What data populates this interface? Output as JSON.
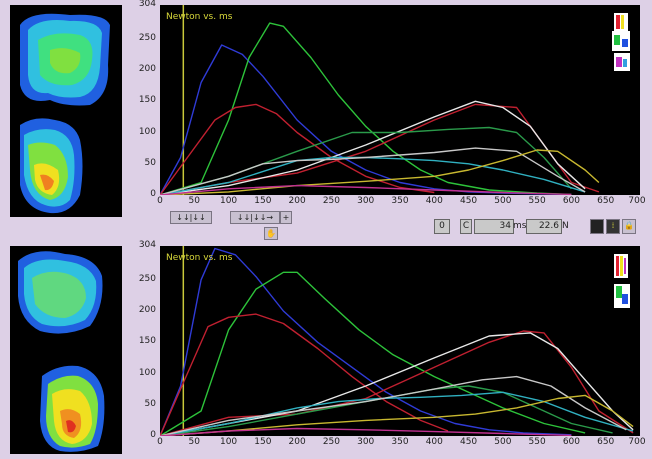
{
  "chart_data": [
    {
      "type": "line",
      "title": "Newton vs. ms",
      "xlabel": "",
      "ylabel": "",
      "xlim": [
        0,
        700
      ],
      "ylim": [
        0,
        304
      ],
      "xticks": [
        "0",
        "50",
        "100",
        "150",
        "200",
        "250",
        "300",
        "350",
        "400",
        "450",
        "500",
        "550",
        "600",
        "650",
        "700"
      ],
      "yticks": [
        "304",
        "250",
        "200",
        "150",
        "100",
        "50",
        "0"
      ],
      "cursor_x": 34,
      "series": [
        {
          "color": "#2f3bd6",
          "x": [
            0,
            30,
            60,
            90,
            120,
            150,
            200,
            250,
            300,
            350,
            400,
            450,
            500,
            550,
            600
          ],
          "y": [
            0,
            60,
            180,
            240,
            225,
            190,
            120,
            70,
            40,
            20,
            10,
            5,
            3,
            2,
            1
          ]
        },
        {
          "color": "#2dc23a",
          "x": [
            0,
            60,
            100,
            130,
            160,
            180,
            220,
            260,
            300,
            340,
            380,
            420,
            480,
            550,
            600
          ],
          "y": [
            0,
            20,
            120,
            220,
            275,
            270,
            220,
            160,
            110,
            70,
            40,
            20,
            8,
            3,
            1
          ]
        },
        {
          "color": "#c02030",
          "x": [
            0,
            40,
            80,
            110,
            140,
            170,
            200,
            250,
            300,
            350,
            400
          ],
          "y": [
            0,
            60,
            120,
            140,
            145,
            130,
            100,
            60,
            30,
            12,
            4
          ]
        },
        {
          "color": "#c02030",
          "x": [
            0,
            100,
            200,
            300,
            400,
            460,
            520,
            560,
            600,
            640
          ],
          "y": [
            0,
            20,
            35,
            70,
            120,
            145,
            140,
            80,
            20,
            5
          ]
        },
        {
          "color": "#e8e8e8",
          "x": [
            0,
            100,
            200,
            300,
            400,
            460,
            500,
            540,
            580,
            620
          ],
          "y": [
            0,
            15,
            40,
            80,
            125,
            150,
            140,
            110,
            50,
            10
          ]
        },
        {
          "color": "#2a9a4a",
          "x": [
            0,
            100,
            200,
            280,
            350,
            420,
            480,
            520,
            560,
            600
          ],
          "y": [
            0,
            30,
            70,
            100,
            100,
            105,
            108,
            100,
            60,
            10
          ]
        },
        {
          "color": "#30b0c0",
          "x": [
            0,
            100,
            200,
            250,
            300,
            350,
            400,
            450,
            500,
            560,
            620
          ],
          "y": [
            0,
            20,
            55,
            60,
            60,
            58,
            55,
            50,
            40,
            25,
            5
          ]
        },
        {
          "color": "#c8c8c8",
          "x": [
            0,
            100,
            150,
            200,
            250,
            300,
            400,
            460,
            520,
            580,
            620
          ],
          "y": [
            0,
            30,
            50,
            55,
            57,
            60,
            68,
            75,
            70,
            30,
            5
          ]
        },
        {
          "color": "#c8b830",
          "x": [
            0,
            100,
            200,
            300,
            400,
            450,
            500,
            550,
            580,
            620,
            640
          ],
          "y": [
            0,
            5,
            15,
            22,
            30,
            40,
            55,
            72,
            70,
            40,
            20
          ]
        },
        {
          "color": "#c03090",
          "x": [
            0,
            100,
            200,
            300,
            400,
            500,
            600
          ],
          "y": [
            0,
            10,
            15,
            12,
            8,
            4,
            1
          ]
        }
      ]
    },
    {
      "type": "line",
      "title": "Newton vs. ms",
      "xlabel": "",
      "ylabel": "",
      "xlim": [
        0,
        700
      ],
      "ylim": [
        0,
        304
      ],
      "xticks": [
        "0",
        "50",
        "100",
        "150",
        "200",
        "250",
        "300",
        "350",
        "400",
        "450",
        "500",
        "550",
        "600",
        "650",
        "700"
      ],
      "yticks": [
        "304",
        "250",
        "200",
        "150",
        "100",
        "50",
        "0"
      ],
      "cursor_x": 34,
      "series": [
        {
          "color": "#2f3bd6",
          "x": [
            0,
            30,
            60,
            80,
            110,
            140,
            180,
            230,
            280,
            330,
            380,
            430,
            480,
            530,
            600
          ],
          "y": [
            0,
            80,
            250,
            300,
            290,
            255,
            200,
            150,
            110,
            70,
            40,
            20,
            10,
            5,
            2
          ]
        },
        {
          "color": "#2dc23a",
          "x": [
            0,
            60,
            100,
            140,
            180,
            200,
            240,
            290,
            340,
            400,
            450,
            500,
            560,
            620
          ],
          "y": [
            0,
            40,
            170,
            235,
            262,
            262,
            220,
            170,
            130,
            95,
            70,
            45,
            20,
            5
          ]
        },
        {
          "color": "#c02030",
          "x": [
            0,
            40,
            70,
            100,
            140,
            180,
            230,
            280,
            330,
            380,
            420
          ],
          "y": [
            0,
            100,
            175,
            190,
            195,
            180,
            140,
            95,
            55,
            25,
            8
          ]
        },
        {
          "color": "#c02030",
          "x": [
            0,
            100,
            200,
            300,
            400,
            480,
            530,
            560,
            600,
            640,
            690
          ],
          "y": [
            0,
            30,
            35,
            60,
            110,
            150,
            168,
            165,
            110,
            40,
            5
          ]
        },
        {
          "color": "#e8e8e8",
          "x": [
            0,
            100,
            200,
            300,
            400,
            480,
            540,
            580,
            620,
            660,
            690
          ],
          "y": [
            0,
            20,
            40,
            80,
            125,
            160,
            165,
            140,
            90,
            40,
            10
          ]
        },
        {
          "color": "#2a9a4a",
          "x": [
            0,
            100,
            200,
            300,
            400,
            450,
            500,
            550,
            600,
            660
          ],
          "y": [
            0,
            15,
            35,
            55,
            75,
            80,
            70,
            45,
            20,
            5
          ]
        },
        {
          "color": "#30b0c0",
          "x": [
            0,
            100,
            200,
            260,
            320,
            380,
            440,
            500,
            560,
            620,
            690
          ],
          "y": [
            0,
            20,
            45,
            55,
            60,
            62,
            65,
            70,
            55,
            30,
            8
          ]
        },
        {
          "color": "#c8c8c8",
          "x": [
            0,
            100,
            200,
            300,
            400,
            470,
            520,
            570,
            620,
            680
          ],
          "y": [
            0,
            25,
            40,
            55,
            75,
            90,
            95,
            80,
            45,
            10
          ]
        },
        {
          "color": "#c8b830",
          "x": [
            0,
            100,
            200,
            300,
            400,
            460,
            520,
            580,
            620,
            660,
            690
          ],
          "y": [
            0,
            8,
            18,
            25,
            30,
            35,
            45,
            60,
            65,
            40,
            15
          ]
        },
        {
          "color": "#c03090",
          "x": [
            0,
            100,
            200,
            300,
            400,
            500,
            600
          ],
          "y": [
            0,
            8,
            12,
            10,
            7,
            4,
            1
          ]
        }
      ]
    }
  ],
  "controls": {
    "btn1": "↓↓|↓↓",
    "btn2": "↓↓|↓↓→",
    "plus": "+",
    "zero_indicator": "0",
    "c_label": "C",
    "ms_value": "34",
    "ms_unit": "ms",
    "n_value": "22.6",
    "n_unit": "N"
  },
  "colors": {
    "background": "#ddd0e6",
    "plot_bg": "#000000",
    "cursor": "#c8c83a",
    "title": "#d8d83a"
  }
}
